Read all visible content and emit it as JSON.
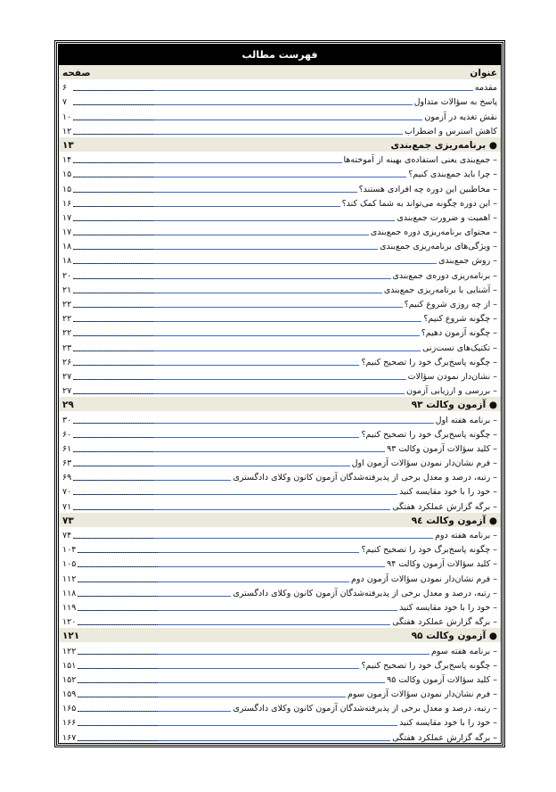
{
  "title": "فهرست مطالب",
  "header": {
    "title_col": "عنوان",
    "page_col": "صفحه"
  },
  "rows": [
    {
      "type": "item",
      "text": "مقدمه",
      "page": "۶"
    },
    {
      "type": "item",
      "text": "پاسخ به سؤالات متداول",
      "page": "۷"
    },
    {
      "type": "item",
      "text": "نقش تغذیه در آزمون",
      "page": "۱۰"
    },
    {
      "type": "item",
      "text": "کاهش استرس و اضطراب",
      "page": "۱۲"
    },
    {
      "type": "section",
      "text": "● برنامه‌ریزی جمع‌بندی",
      "page": "۱۳"
    },
    {
      "type": "item",
      "text": "– جمع‌بندی یعنی استفاده‌ی بهینه از آموخته‌ها",
      "page": "۱۴"
    },
    {
      "type": "item",
      "text": "– چرا باید جمع‌بندی کنیم؟",
      "page": "۱۵"
    },
    {
      "type": "item",
      "text": "– مخاطبین این دوره چه افرادی هستند؟",
      "page": "۱۵"
    },
    {
      "type": "item",
      "text": "– این دوره چگونه می‌تواند به شما کمک کند؟",
      "page": "۱۶"
    },
    {
      "type": "item",
      "text": "– اهمیت و ضرورت جمع‌بندی",
      "page": "۱۷"
    },
    {
      "type": "item",
      "text": "– محتوای برنامه‌ریزی دوره جمع‌بندی",
      "page": "۱۷"
    },
    {
      "type": "item",
      "text": "– ویژگی‌های برنامه‌ریزی جمع‌بندی",
      "page": "۱۸"
    },
    {
      "type": "item",
      "text": "– روش جمع‌بندی",
      "page": "۱۸"
    },
    {
      "type": "item",
      "text": "– برنامه‌ریزی دوره‌ی جمع‌بندی",
      "page": "۲۰"
    },
    {
      "type": "item",
      "text": "– آشنایی با برنامه‌ریزی جمع‌بندی",
      "page": "۲۱"
    },
    {
      "type": "item",
      "text": "– از چه روزی شروع کنیم؟",
      "page": "۲۲"
    },
    {
      "type": "item",
      "text": "– چگونه شروع کنیم؟",
      "page": "۲۲"
    },
    {
      "type": "item",
      "text": "– چگونه آزمون دهیم؟",
      "page": "۲۲"
    },
    {
      "type": "item",
      "text": "– تکنیک‌های تست‌زنی",
      "page": "۲۳"
    },
    {
      "type": "item",
      "text": "– چگونه پاسخ‌برگ خود را تصحیح کنیم؟",
      "page": "۲۶"
    },
    {
      "type": "item",
      "text": "– نشان‌دار نمودن سؤالات",
      "page": "۲۷"
    },
    {
      "type": "item",
      "text": "– بررسی و ارزیابی آزمون",
      "page": "۲۷"
    },
    {
      "type": "section",
      "text": "● آزمون وکالت ۹۳",
      "page": "۲۹"
    },
    {
      "type": "item",
      "text": "– برنامه هفته اول",
      "page": "۳۰"
    },
    {
      "type": "item",
      "text": "– چگونه پاسخ‌برگ خود را تصحیح کنیم؟",
      "page": "۶۰"
    },
    {
      "type": "item",
      "text": "– کلید سؤالات آزمون وکالت ۹۳",
      "page": "۶۱"
    },
    {
      "type": "item",
      "text": "– فرم نشان‌دار نمودن سؤالات آزمون اول",
      "page": "۶۳"
    },
    {
      "type": "item",
      "text": "– رتبه، درصد و معدل برخی از پذیرفته‌شدگان آزمون کانون وکلای دادگستری",
      "page": "۶۹"
    },
    {
      "type": "item",
      "text": "– خود را با خود مقایسه کنید",
      "page": "۷۰"
    },
    {
      "type": "item",
      "text": "– برگه گزارش عملکرد هفتگی",
      "page": "۷۱"
    },
    {
      "type": "section",
      "text": "● آزمون وکالت ۹٤",
      "page": "۷۳"
    },
    {
      "type": "item",
      "text": "– برنامه هفته دوم",
      "page": "۷۴"
    },
    {
      "type": "item",
      "text": "– چگونه پاسخ‌برگ خود را تصحیح کنیم؟",
      "page": "۱۰۴"
    },
    {
      "type": "item",
      "text": "– کلید سؤالات آزمون وکالت ۹۴",
      "page": "۱۰۵"
    },
    {
      "type": "item",
      "text": "– فرم نشان‌دار نمودن سؤالات آزمون دوم",
      "page": "۱۱۲"
    },
    {
      "type": "item",
      "text": "– رتبه، درصد و معدل برخی از پذیرفته‌شدگان آزمون کانون وکلای دادگستری",
      "page": "۱۱۸"
    },
    {
      "type": "item",
      "text": "– خود را با خود مقایسه کنید",
      "page": "۱۱۹"
    },
    {
      "type": "item",
      "text": "– برگه گزارش عملکرد هفتگی",
      "page": "۱۲۰"
    },
    {
      "type": "section",
      "text": "● آزمون وکالت ۹۵",
      "page": "۱۲۱"
    },
    {
      "type": "item",
      "text": "– برنامه هفته سوم",
      "page": "۱۲۲"
    },
    {
      "type": "item",
      "text": "– چگونه پاسخ‌برگ خود را تصحیح کنیم؟",
      "page": "۱۵۱"
    },
    {
      "type": "item",
      "text": "– کلید سؤالات آزمون وکالت ۹۵",
      "page": "۱۵۲"
    },
    {
      "type": "item",
      "text": "– فرم نشان‌دار نمودن سؤالات آزمون سوم",
      "page": "۱۵۹"
    },
    {
      "type": "item",
      "text": "– رتبه، درصد و معدل برخی از پذیرفته‌شدگان آزمون کانون وکلای دادگستری",
      "page": "۱۶۵"
    },
    {
      "type": "item",
      "text": "– خود را با خود مقایسه کنید",
      "page": "۱۶۶"
    },
    {
      "type": "item",
      "text": "– برگه گزارش عملکرد هفتگی",
      "page": "۱۶۷"
    }
  ]
}
